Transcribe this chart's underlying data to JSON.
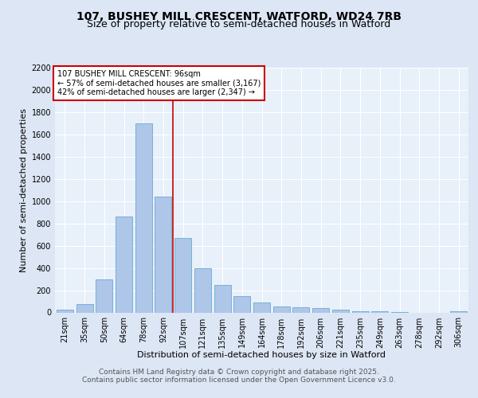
{
  "title_line1": "107, BUSHEY MILL CRESCENT, WATFORD, WD24 7RB",
  "title_line2": "Size of property relative to semi-detached houses in Watford",
  "xlabel": "Distribution of semi-detached houses by size in Watford",
  "ylabel": "Number of semi-detached properties",
  "categories": [
    "21sqm",
    "35sqm",
    "50sqm",
    "64sqm",
    "78sqm",
    "92sqm",
    "107sqm",
    "121sqm",
    "135sqm",
    "149sqm",
    "164sqm",
    "178sqm",
    "192sqm",
    "206sqm",
    "221sqm",
    "235sqm",
    "249sqm",
    "263sqm",
    "278sqm",
    "292sqm",
    "306sqm"
  ],
  "values": [
    25,
    75,
    300,
    860,
    1700,
    1040,
    670,
    395,
    245,
    150,
    90,
    55,
    45,
    40,
    25,
    10,
    10,
    5,
    0,
    0,
    10
  ],
  "bar_color": "#aec6e8",
  "bar_edge_color": "#6aaad4",
  "vline_color": "#cc0000",
  "annotation_title": "107 BUSHEY MILL CRESCENT: 96sqm",
  "annotation_line1": "← 57% of semi-detached houses are smaller (3,167)",
  "annotation_line2": "42% of semi-detached houses are larger (2,347) →",
  "annotation_box_color": "#ffffff",
  "annotation_border_color": "#cc0000",
  "ylim": [
    0,
    2200
  ],
  "yticks": [
    0,
    200,
    400,
    600,
    800,
    1000,
    1200,
    1400,
    1600,
    1800,
    2000,
    2200
  ],
  "bg_color": "#dce6f5",
  "plot_bg_color": "#e8f0fa",
  "footer_line1": "Contains HM Land Registry data © Crown copyright and database right 2025.",
  "footer_line2": "Contains public sector information licensed under the Open Government Licence v3.0.",
  "title_fontsize": 10,
  "subtitle_fontsize": 9,
  "axis_label_fontsize": 8,
  "tick_fontsize": 7,
  "annotation_fontsize": 7,
  "footer_fontsize": 6.5
}
